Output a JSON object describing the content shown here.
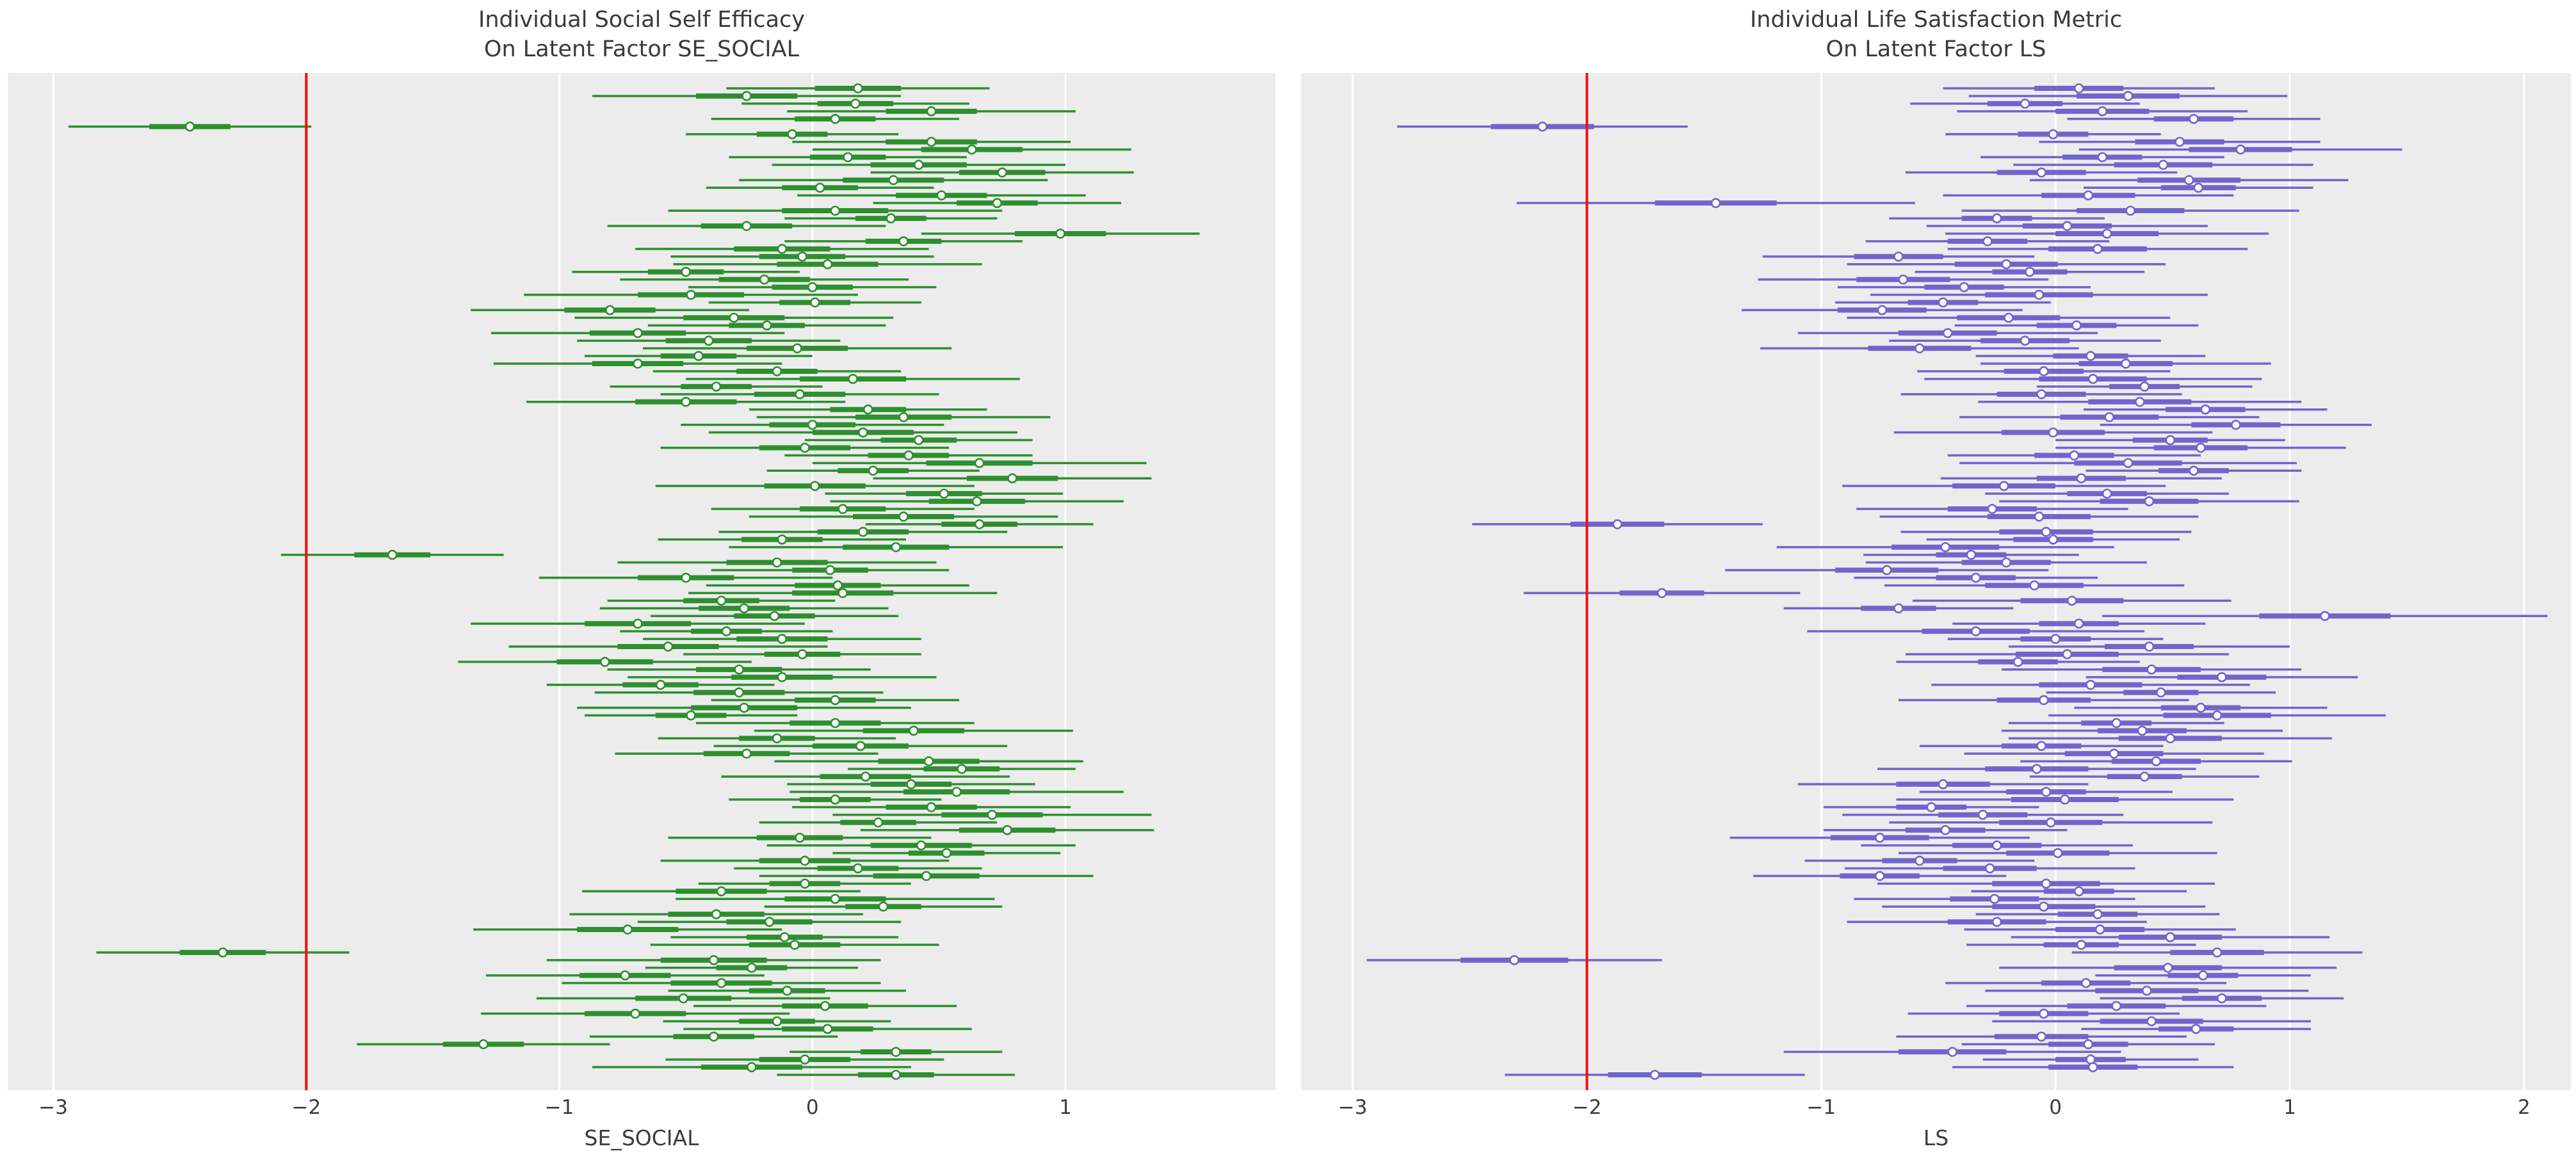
{
  "figure": {
    "background": "#ffffff",
    "text_color": "#3a3a3a"
  },
  "chart_data": [
    {
      "type": "forest_interval",
      "title_line1": "Individual Social Self Efficacy",
      "title_line2": "On Latent Factor SE_SOCIAL",
      "xlabel": "SE_SOCIAL",
      "xlim": [
        -3.18,
        1.83
      ],
      "tick_values": [
        -3,
        -2,
        -1,
        0,
        1
      ],
      "tick_labels": [
        "−3",
        "−2",
        "−1",
        "0",
        "1"
      ],
      "grid": true,
      "legend": "none",
      "ref_line": {
        "x": -2,
        "color": "#ee1111"
      },
      "colors": {
        "interval": "#2e8f2e",
        "marker_face": "#ffffff",
        "panel_bg": "#ececec",
        "grid": "#ffffff"
      },
      "row_format": "mean, outer_interval_halfwidth, inner_interval_halfwidth",
      "rows": [
        [
          0.18,
          0.52,
          0.17
        ],
        [
          -0.26,
          0.61,
          0.2
        ],
        [
          0.17,
          0.45,
          0.15
        ],
        [
          0.47,
          0.57,
          0.18
        ],
        [
          0.09,
          0.49,
          0.16
        ],
        [
          -2.46,
          0.48,
          0.16
        ],
        [
          -0.08,
          0.42,
          0.14
        ],
        [
          0.47,
          0.55,
          0.18
        ],
        [
          0.63,
          0.63,
          0.2
        ],
        [
          0.14,
          0.47,
          0.15
        ],
        [
          0.42,
          0.58,
          0.19
        ],
        [
          0.75,
          0.52,
          0.17
        ],
        [
          0.32,
          0.61,
          0.2
        ],
        [
          0.03,
          0.45,
          0.15
        ],
        [
          0.51,
          0.57,
          0.18
        ],
        [
          0.73,
          0.49,
          0.16
        ],
        [
          0.09,
          0.66,
          0.21
        ],
        [
          0.31,
          0.42,
          0.14
        ],
        [
          -0.26,
          0.55,
          0.18
        ],
        [
          0.98,
          0.55,
          0.18
        ],
        [
          0.36,
          0.47,
          0.15
        ],
        [
          -0.12,
          0.58,
          0.19
        ],
        [
          -0.04,
          0.52,
          0.17
        ],
        [
          0.06,
          0.61,
          0.2
        ],
        [
          -0.5,
          0.45,
          0.15
        ],
        [
          -0.19,
          0.57,
          0.18
        ],
        [
          0.0,
          0.49,
          0.16
        ],
        [
          -0.48,
          0.66,
          0.21
        ],
        [
          0.01,
          0.42,
          0.14
        ],
        [
          -0.8,
          0.55,
          0.18
        ],
        [
          -0.31,
          0.63,
          0.2
        ],
        [
          -0.18,
          0.47,
          0.15
        ],
        [
          -0.69,
          0.58,
          0.19
        ],
        [
          -0.41,
          0.52,
          0.17
        ],
        [
          -0.06,
          0.61,
          0.2
        ],
        [
          -0.45,
          0.45,
          0.15
        ],
        [
          -0.69,
          0.57,
          0.18
        ],
        [
          -0.14,
          0.49,
          0.16
        ],
        [
          0.16,
          0.66,
          0.21
        ],
        [
          -0.38,
          0.42,
          0.14
        ],
        [
          -0.05,
          0.55,
          0.18
        ],
        [
          -0.5,
          0.63,
          0.2
        ],
        [
          0.22,
          0.47,
          0.15
        ],
        [
          0.36,
          0.58,
          0.19
        ],
        [
          0.0,
          0.52,
          0.17
        ],
        [
          0.2,
          0.61,
          0.2
        ],
        [
          0.42,
          0.45,
          0.15
        ],
        [
          -0.03,
          0.57,
          0.18
        ],
        [
          0.38,
          0.49,
          0.16
        ],
        [
          0.66,
          0.66,
          0.21
        ],
        [
          0.24,
          0.42,
          0.14
        ],
        [
          0.79,
          0.55,
          0.18
        ],
        [
          0.01,
          0.63,
          0.2
        ],
        [
          0.52,
          0.47,
          0.15
        ],
        [
          0.65,
          0.58,
          0.19
        ],
        [
          0.12,
          0.52,
          0.17
        ],
        [
          0.36,
          0.61,
          0.2
        ],
        [
          0.66,
          0.45,
          0.15
        ],
        [
          0.2,
          0.57,
          0.18
        ],
        [
          -0.12,
          0.49,
          0.16
        ],
        [
          0.33,
          0.66,
          0.21
        ],
        [
          -1.66,
          0.44,
          0.15
        ],
        [
          -0.14,
          0.63,
          0.2
        ],
        [
          0.07,
          0.47,
          0.15
        ],
        [
          -0.5,
          0.58,
          0.19
        ],
        [
          0.1,
          0.52,
          0.17
        ],
        [
          0.12,
          0.61,
          0.2
        ],
        [
          -0.36,
          0.45,
          0.15
        ],
        [
          -0.27,
          0.57,
          0.18
        ],
        [
          -0.15,
          0.49,
          0.16
        ],
        [
          -0.69,
          0.66,
          0.21
        ],
        [
          -0.34,
          0.42,
          0.14
        ],
        [
          -0.12,
          0.55,
          0.18
        ],
        [
          -0.57,
          0.63,
          0.2
        ],
        [
          -0.04,
          0.47,
          0.15
        ],
        [
          -0.82,
          0.58,
          0.19
        ],
        [
          -0.29,
          0.52,
          0.17
        ],
        [
          -0.12,
          0.61,
          0.2
        ],
        [
          -0.6,
          0.45,
          0.15
        ],
        [
          -0.29,
          0.57,
          0.18
        ],
        [
          0.09,
          0.49,
          0.16
        ],
        [
          -0.27,
          0.66,
          0.21
        ],
        [
          -0.48,
          0.42,
          0.14
        ],
        [
          0.09,
          0.55,
          0.18
        ],
        [
          0.4,
          0.63,
          0.2
        ],
        [
          -0.14,
          0.47,
          0.15
        ],
        [
          0.19,
          0.58,
          0.19
        ],
        [
          -0.26,
          0.52,
          0.17
        ],
        [
          0.46,
          0.61,
          0.2
        ],
        [
          0.59,
          0.45,
          0.15
        ],
        [
          0.21,
          0.57,
          0.18
        ],
        [
          0.39,
          0.49,
          0.16
        ],
        [
          0.57,
          0.66,
          0.21
        ],
        [
          0.09,
          0.42,
          0.14
        ],
        [
          0.47,
          0.55,
          0.18
        ],
        [
          0.71,
          0.63,
          0.2
        ],
        [
          0.26,
          0.47,
          0.15
        ],
        [
          0.77,
          0.58,
          0.19
        ],
        [
          -0.05,
          0.52,
          0.17
        ],
        [
          0.43,
          0.61,
          0.2
        ],
        [
          0.53,
          0.45,
          0.15
        ],
        [
          -0.03,
          0.57,
          0.18
        ],
        [
          0.18,
          0.49,
          0.16
        ],
        [
          0.45,
          0.66,
          0.21
        ],
        [
          -0.03,
          0.42,
          0.14
        ],
        [
          -0.36,
          0.55,
          0.18
        ],
        [
          0.09,
          0.63,
          0.2
        ],
        [
          0.28,
          0.47,
          0.15
        ],
        [
          -0.38,
          0.58,
          0.19
        ],
        [
          -0.17,
          0.52,
          0.17
        ],
        [
          -0.73,
          0.61,
          0.2
        ],
        [
          -0.11,
          0.45,
          0.15
        ],
        [
          -0.07,
          0.57,
          0.18
        ],
        [
          -2.33,
          0.5,
          0.17
        ],
        [
          -0.39,
          0.66,
          0.21
        ],
        [
          -0.24,
          0.42,
          0.14
        ],
        [
          -0.74,
          0.55,
          0.18
        ],
        [
          -0.36,
          0.63,
          0.2
        ],
        [
          -0.1,
          0.47,
          0.15
        ],
        [
          -0.51,
          0.58,
          0.19
        ],
        [
          0.05,
          0.52,
          0.17
        ],
        [
          -0.7,
          0.61,
          0.2
        ],
        [
          -0.14,
          0.45,
          0.15
        ],
        [
          0.06,
          0.57,
          0.18
        ],
        [
          -0.39,
          0.49,
          0.16
        ],
        [
          -1.3,
          0.5,
          0.16
        ],
        [
          0.33,
          0.42,
          0.14
        ],
        [
          -0.03,
          0.55,
          0.18
        ],
        [
          -0.24,
          0.63,
          0.2
        ],
        [
          0.33,
          0.47,
          0.15
        ]
      ]
    },
    {
      "type": "forest_interval",
      "title_line1": "Individual Life Satisfaction Metric",
      "title_line2": "On Latent Factor LS",
      "xlabel": "LS",
      "xlim": [
        -3.22,
        2.2
      ],
      "tick_values": [
        -3,
        -2,
        -1,
        0,
        1,
        2
      ],
      "tick_labels": [
        "−3",
        "−2",
        "−1",
        "0",
        "1",
        "2"
      ],
      "grid": true,
      "legend": "none",
      "ref_line": {
        "x": -2,
        "color": "#ee1111"
      },
      "colors": {
        "interval": "#7165cc",
        "marker_face": "#ffffff",
        "panel_bg": "#ececec",
        "grid": "#ffffff"
      },
      "row_format": "mean, outer_interval_halfwidth, inner_interval_halfwidth",
      "rows": [
        [
          0.1,
          0.58,
          0.19
        ],
        [
          0.31,
          0.68,
          0.22
        ],
        [
          -0.13,
          0.49,
          0.16
        ],
        [
          0.2,
          0.62,
          0.2
        ],
        [
          0.59,
          0.54,
          0.17
        ],
        [
          -2.19,
          0.62,
          0.22
        ],
        [
          -0.01,
          0.46,
          0.15
        ],
        [
          0.53,
          0.6,
          0.19
        ],
        [
          0.79,
          0.69,
          0.22
        ],
        [
          0.2,
          0.52,
          0.17
        ],
        [
          0.46,
          0.64,
          0.21
        ],
        [
          -0.06,
          0.58,
          0.19
        ],
        [
          0.57,
          0.68,
          0.22
        ],
        [
          0.61,
          0.49,
          0.16
        ],
        [
          0.14,
          0.62,
          0.2
        ],
        [
          -1.45,
          0.85,
          0.26
        ],
        [
          0.32,
          0.72,
          0.23
        ],
        [
          -0.25,
          0.46,
          0.15
        ],
        [
          0.05,
          0.6,
          0.19
        ],
        [
          0.22,
          0.69,
          0.22
        ],
        [
          -0.29,
          0.52,
          0.17
        ],
        [
          0.18,
          0.64,
          0.21
        ],
        [
          -0.67,
          0.58,
          0.19
        ],
        [
          -0.21,
          0.68,
          0.22
        ],
        [
          -0.11,
          0.49,
          0.16
        ],
        [
          -0.65,
          0.62,
          0.2
        ],
        [
          -0.39,
          0.54,
          0.17
        ],
        [
          -0.07,
          0.72,
          0.23
        ],
        [
          -0.48,
          0.46,
          0.15
        ],
        [
          -0.74,
          0.6,
          0.19
        ],
        [
          -0.2,
          0.69,
          0.22
        ],
        [
          0.09,
          0.52,
          0.17
        ],
        [
          -0.46,
          0.64,
          0.21
        ],
        [
          -0.13,
          0.58,
          0.19
        ],
        [
          -0.58,
          0.68,
          0.22
        ],
        [
          0.15,
          0.49,
          0.16
        ],
        [
          0.3,
          0.62,
          0.2
        ],
        [
          -0.05,
          0.54,
          0.17
        ],
        [
          0.16,
          0.72,
          0.23
        ],
        [
          0.38,
          0.46,
          0.15
        ],
        [
          -0.06,
          0.6,
          0.19
        ],
        [
          0.36,
          0.69,
          0.22
        ],
        [
          0.64,
          0.52,
          0.17
        ],
        [
          0.23,
          0.64,
          0.21
        ],
        [
          0.77,
          0.58,
          0.19
        ],
        [
          -0.01,
          0.68,
          0.22
        ],
        [
          0.49,
          0.49,
          0.16
        ],
        [
          0.62,
          0.62,
          0.2
        ],
        [
          0.08,
          0.54,
          0.17
        ],
        [
          0.31,
          0.72,
          0.23
        ],
        [
          0.59,
          0.46,
          0.15
        ],
        [
          0.11,
          0.6,
          0.19
        ],
        [
          -0.22,
          0.69,
          0.22
        ],
        [
          0.22,
          0.52,
          0.17
        ],
        [
          0.4,
          0.64,
          0.21
        ],
        [
          -0.27,
          0.58,
          0.19
        ],
        [
          -0.07,
          0.68,
          0.22
        ],
        [
          -1.87,
          0.62,
          0.2
        ],
        [
          -0.04,
          0.62,
          0.2
        ],
        [
          -0.01,
          0.54,
          0.17
        ],
        [
          -0.47,
          0.72,
          0.23
        ],
        [
          -0.36,
          0.46,
          0.15
        ],
        [
          -0.21,
          0.6,
          0.19
        ],
        [
          -0.72,
          0.69,
          0.22
        ],
        [
          -0.34,
          0.52,
          0.17
        ],
        [
          -0.09,
          0.64,
          0.21
        ],
        [
          -1.68,
          0.59,
          0.18
        ],
        [
          0.07,
          0.68,
          0.22
        ],
        [
          -0.67,
          0.49,
          0.16
        ],
        [
          1.15,
          0.95,
          0.28
        ],
        [
          0.1,
          0.54,
          0.17
        ],
        [
          -0.34,
          0.72,
          0.23
        ],
        [
          0.0,
          0.46,
          0.15
        ],
        [
          0.4,
          0.6,
          0.19
        ],
        [
          0.05,
          0.69,
          0.22
        ],
        [
          -0.16,
          0.52,
          0.17
        ],
        [
          0.41,
          0.64,
          0.21
        ],
        [
          0.71,
          0.58,
          0.19
        ],
        [
          0.15,
          0.68,
          0.22
        ],
        [
          0.45,
          0.49,
          0.16
        ],
        [
          -0.05,
          0.62,
          0.2
        ],
        [
          0.62,
          0.54,
          0.17
        ],
        [
          0.69,
          0.72,
          0.23
        ],
        [
          0.26,
          0.46,
          0.15
        ],
        [
          0.37,
          0.6,
          0.19
        ],
        [
          0.49,
          0.69,
          0.22
        ],
        [
          -0.06,
          0.52,
          0.17
        ],
        [
          0.25,
          0.64,
          0.21
        ],
        [
          0.43,
          0.58,
          0.19
        ],
        [
          -0.08,
          0.68,
          0.22
        ],
        [
          0.38,
          0.49,
          0.16
        ],
        [
          -0.48,
          0.62,
          0.2
        ],
        [
          -0.04,
          0.54,
          0.17
        ],
        [
          0.04,
          0.72,
          0.23
        ],
        [
          -0.53,
          0.46,
          0.15
        ],
        [
          -0.31,
          0.6,
          0.19
        ],
        [
          -0.02,
          0.69,
          0.22
        ],
        [
          -0.47,
          0.52,
          0.17
        ],
        [
          -0.75,
          0.64,
          0.21
        ],
        [
          -0.25,
          0.58,
          0.19
        ],
        [
          0.01,
          0.68,
          0.22
        ],
        [
          -0.58,
          0.49,
          0.16
        ],
        [
          -0.28,
          0.62,
          0.2
        ],
        [
          -0.75,
          0.54,
          0.17
        ],
        [
          -0.04,
          0.72,
          0.23
        ],
        [
          0.1,
          0.46,
          0.15
        ],
        [
          -0.26,
          0.6,
          0.19
        ],
        [
          -0.05,
          0.69,
          0.22
        ],
        [
          0.18,
          0.52,
          0.17
        ],
        [
          -0.25,
          0.64,
          0.21
        ],
        [
          0.19,
          0.58,
          0.19
        ],
        [
          0.49,
          0.68,
          0.22
        ],
        [
          0.11,
          0.49,
          0.16
        ],
        [
          0.69,
          0.62,
          0.2
        ],
        [
          -2.31,
          0.63,
          0.23
        ],
        [
          0.48,
          0.72,
          0.23
        ],
        [
          0.63,
          0.46,
          0.15
        ],
        [
          0.13,
          0.6,
          0.19
        ],
        [
          0.39,
          0.69,
          0.22
        ],
        [
          0.71,
          0.52,
          0.17
        ],
        [
          0.26,
          0.64,
          0.21
        ],
        [
          -0.05,
          0.58,
          0.19
        ],
        [
          0.41,
          0.68,
          0.22
        ],
        [
          0.6,
          0.49,
          0.16
        ],
        [
          -0.06,
          0.62,
          0.2
        ],
        [
          0.14,
          0.54,
          0.17
        ],
        [
          -0.44,
          0.72,
          0.23
        ],
        [
          0.15,
          0.46,
          0.15
        ],
        [
          0.16,
          0.6,
          0.19
        ],
        [
          -1.71,
          0.64,
          0.2
        ]
      ]
    }
  ]
}
